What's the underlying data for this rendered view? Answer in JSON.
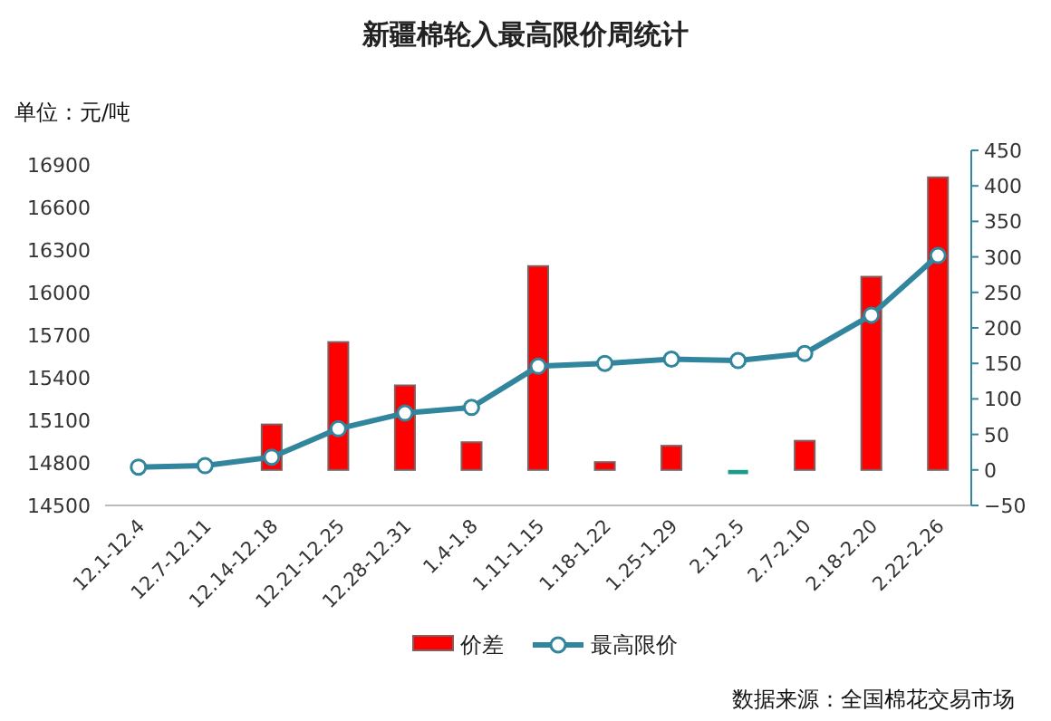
{
  "chart_data": {
    "type": "bar",
    "title": "新疆棉轮入最高限价周统计",
    "categories": [
      "12.1-12.4",
      "12.7-12.11",
      "12.14-12.18",
      "12.21-12.25",
      "12.28-12.31",
      "1.4-1.8",
      "1.11-1.15",
      "1.18-1.22",
      "1.25-1.29",
      "2.1-2.5",
      "2.7-2.10",
      "2.18-2.20",
      "2.22-2.26"
    ],
    "series": [
      {
        "name": "价差",
        "axis": "y2",
        "color": "#ff0000",
        "colors": [
          "#ff0000",
          "#ff0000",
          "#ff0000",
          "#ff0000",
          "#ff0000",
          "#ff0000",
          "#ff0000",
          "#ff0000",
          "#ff0000",
          "#1a9a8a",
          "#ff0000",
          "#ff0000",
          "#ff0000"
        ],
        "values": [
          0,
          0,
          64,
          180,
          119,
          39,
          287,
          11,
          34,
          -6,
          41,
          272,
          412
        ]
      },
      {
        "name": "最高限价",
        "type": "line",
        "axis": "y",
        "color": "#31859c",
        "values": [
          14770,
          14780,
          14840,
          15040,
          15150,
          15190,
          15480,
          15500,
          15530,
          15520,
          15570,
          15840,
          16260
        ]
      }
    ],
    "ylim": [
      14500,
      17000
    ],
    "yticks": [
      14500,
      14800,
      15100,
      15400,
      15700,
      16000,
      16300,
      16600,
      16900
    ],
    "y2lim": [
      -50,
      450
    ],
    "y2ticks": [
      -50,
      0,
      50,
      100,
      150,
      200,
      250,
      300,
      350,
      400,
      450
    ],
    "legend": "bottom",
    "marker": "circle",
    "grid": false,
    "annotations": [
      "单位：元/吨",
      "数据来源：全国棉花交易市场"
    ]
  }
}
